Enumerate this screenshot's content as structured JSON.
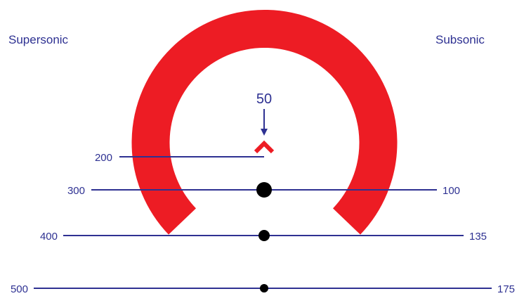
{
  "headers": {
    "left": "Supersonic",
    "right": "Subsonic"
  },
  "marker": {
    "value": "50"
  },
  "left_scale": [
    "200",
    "300",
    "400",
    "500"
  ],
  "right_scale": [
    "100",
    "135",
    "175"
  ],
  "colors": {
    "arc": "#ed1c24",
    "lines": "#2e3192",
    "text": "#2e3192",
    "dots": "#000000",
    "chevron": "#ed1c24"
  }
}
